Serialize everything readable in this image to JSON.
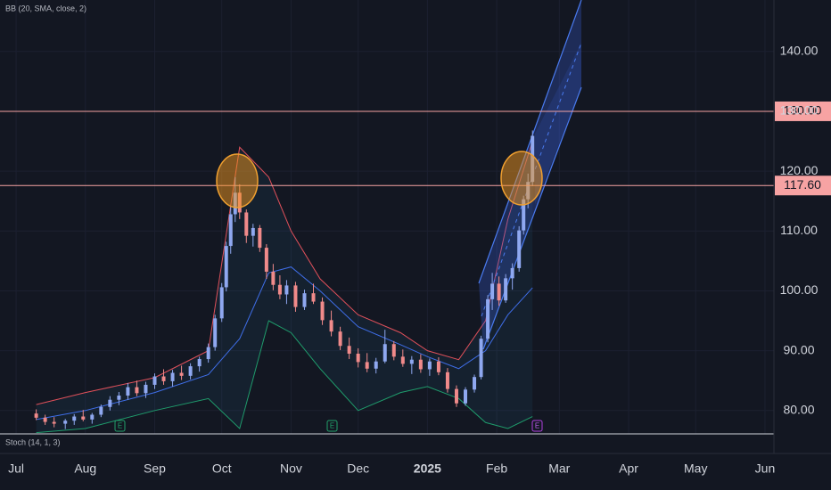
{
  "chart_data": {
    "type": "candlestick",
    "indicator_label": "BB (20, SMA, close, 2)",
    "lower_pane_label": "Stoch (14, 1, 3)",
    "xlim": [
      -7.2,
      339
    ],
    "xticks": [
      {
        "value": 0,
        "label": "Jul"
      },
      {
        "value": 31,
        "label": "Aug"
      },
      {
        "value": 62,
        "label": "Sep"
      },
      {
        "value": 92,
        "label": "Oct"
      },
      {
        "value": 123,
        "label": "Nov"
      },
      {
        "value": 153,
        "label": "Dec"
      },
      {
        "value": 184,
        "label": "2025"
      },
      {
        "value": 215,
        "label": "Feb"
      },
      {
        "value": 243,
        "label": "Mar"
      },
      {
        "value": 274,
        "label": "Apr"
      },
      {
        "value": 304,
        "label": "May"
      },
      {
        "value": 335,
        "label": "Jun"
      }
    ],
    "ylim": [
      76.1,
      148.6
    ],
    "yticks": [
      {
        "value": 80,
        "label": "80.00"
      },
      {
        "value": 90,
        "label": "90.00"
      },
      {
        "value": 100,
        "label": "100.00"
      },
      {
        "value": 110,
        "label": "110.00"
      },
      {
        "value": 120,
        "label": "120.00"
      },
      {
        "value": 130,
        "label": "130.00"
      },
      {
        "value": 140,
        "label": "140.00"
      }
    ],
    "grid": true,
    "up_color": "#8fa8f0",
    "down_color": "#f08a8a",
    "candles": {
      "x": [
        9,
        13,
        17,
        22,
        26,
        30,
        34,
        38,
        42,
        46,
        50,
        54,
        58,
        62,
        66,
        70,
        74,
        78,
        82,
        86,
        89,
        92,
        94,
        96,
        98,
        100,
        103,
        106,
        109,
        112,
        115,
        118,
        121,
        125,
        129,
        133,
        137,
        141,
        145,
        149,
        153,
        157,
        161,
        165,
        169,
        173,
        177,
        181,
        185,
        189,
        193,
        197,
        201,
        205,
        208,
        211,
        213,
        216,
        219,
        222,
        225,
        227,
        229,
        231
      ],
      "open": [
        79.5,
        78.8,
        78.1,
        77.8,
        78.3,
        79.0,
        78.5,
        79.3,
        80.6,
        81.8,
        82.5,
        83.9,
        82.9,
        84.3,
        85.7,
        84.9,
        86.3,
        85.8,
        87.4,
        88.6,
        90.6,
        95.4,
        100.6,
        107.5,
        112.8,
        116.4,
        113.1,
        109.2,
        110.5,
        107.2,
        103.2,
        101.0,
        99.4,
        100.9,
        97.3,
        99.6,
        98.2,
        95.1,
        93.2,
        90.8,
        89.5,
        88.1,
        87.0,
        88.2,
        91.1,
        89.0,
        87.8,
        88.5,
        86.9,
        88.2,
        86.4,
        83.6,
        81.2,
        83.5,
        85.6,
        92.0,
        98.6,
        101.2,
        98.4,
        102.1,
        103.8,
        110.1,
        115.3,
        118.2
      ],
      "high": [
        80.2,
        79.3,
        78.9,
        78.6,
        79.4,
        80.1,
        79.6,
        81.0,
        82.4,
        83.1,
        84.6,
        85.0,
        84.8,
        86.2,
        86.9,
        86.8,
        87.5,
        87.9,
        89.0,
        91.2,
        96.0,
        101.3,
        108.2,
        114.0,
        119.0,
        117.8,
        113.6,
        111.2,
        111.0,
        107.8,
        104.5,
        102.6,
        101.8,
        101.5,
        100.2,
        101.2,
        98.9,
        96.7,
        94.0,
        92.2,
        90.4,
        89.6,
        88.8,
        93.5,
        91.6,
        90.2,
        89.1,
        89.4,
        88.7,
        88.9,
        87.1,
        84.2,
        83.9,
        86.0,
        92.5,
        99.3,
        103.0,
        102.4,
        102.8,
        104.6,
        110.8,
        115.9,
        119.6,
        126.8
      ],
      "low": [
        78.4,
        77.6,
        77.2,
        76.9,
        77.6,
        78.2,
        77.8,
        78.9,
        80.0,
        80.9,
        81.8,
        82.4,
        82.1,
        83.6,
        84.3,
        84.0,
        85.1,
        85.2,
        86.5,
        88.0,
        90.0,
        94.8,
        99.9,
        106.2,
        111.5,
        112.0,
        108.0,
        107.4,
        106.5,
        102.0,
        100.1,
        98.6,
        97.8,
        96.5,
        96.8,
        97.8,
        94.3,
        92.4,
        90.1,
        88.6,
        87.2,
        86.4,
        86.2,
        87.9,
        88.4,
        87.3,
        86.1,
        86.3,
        85.8,
        85.9,
        83.0,
        80.6,
        80.8,
        83.0,
        85.2,
        91.4,
        96.8,
        97.5,
        98.0,
        100.2,
        103.2,
        109.4,
        113.8,
        117.5
      ],
      "close": [
        78.8,
        78.1,
        77.8,
        78.3,
        79.0,
        78.5,
        79.3,
        80.6,
        81.8,
        82.5,
        83.9,
        82.9,
        84.3,
        85.7,
        84.9,
        86.3,
        85.8,
        87.4,
        88.6,
        90.6,
        95.4,
        100.6,
        107.5,
        112.8,
        116.4,
        113.1,
        109.2,
        110.5,
        107.2,
        103.2,
        101.0,
        99.4,
        100.9,
        97.3,
        99.6,
        98.2,
        95.1,
        93.2,
        90.8,
        89.5,
        88.1,
        87.0,
        88.2,
        91.1,
        89.0,
        87.8,
        88.5,
        86.9,
        88.2,
        86.4,
        83.6,
        81.2,
        83.5,
        85.6,
        92.0,
        98.6,
        101.2,
        98.4,
        102.1,
        103.8,
        110.1,
        115.3,
        118.2,
        125.9
      ]
    },
    "bands": {
      "x": [
        9,
        31,
        62,
        86,
        100,
        113,
        123,
        136,
        153,
        172,
        184,
        198,
        210,
        220,
        231
      ],
      "upper": [
        81,
        83,
        85.5,
        90,
        124,
        119,
        110,
        102,
        96,
        93,
        90,
        88.5,
        95,
        112,
        125
      ],
      "middle": [
        78.5,
        80,
        83,
        86,
        92,
        103,
        104,
        100,
        94,
        91,
        89,
        87,
        90,
        96,
        100.5
      ],
      "lower": [
        76.3,
        77,
        80,
        82,
        77,
        95,
        93,
        87,
        80,
        83,
        84,
        82,
        78,
        77,
        79
      ],
      "upper_color": "#e0505a",
      "middle_color": "#3f6ee8",
      "lower_color": "#1f9c6c"
    },
    "levels": [
      {
        "value": 130,
        "label": "130.00"
      },
      {
        "value": 117.6,
        "label": "117.60"
      }
    ],
    "level_color": "#f7a3a3",
    "annotations": [
      "E",
      "E",
      "E"
    ]
  }
}
